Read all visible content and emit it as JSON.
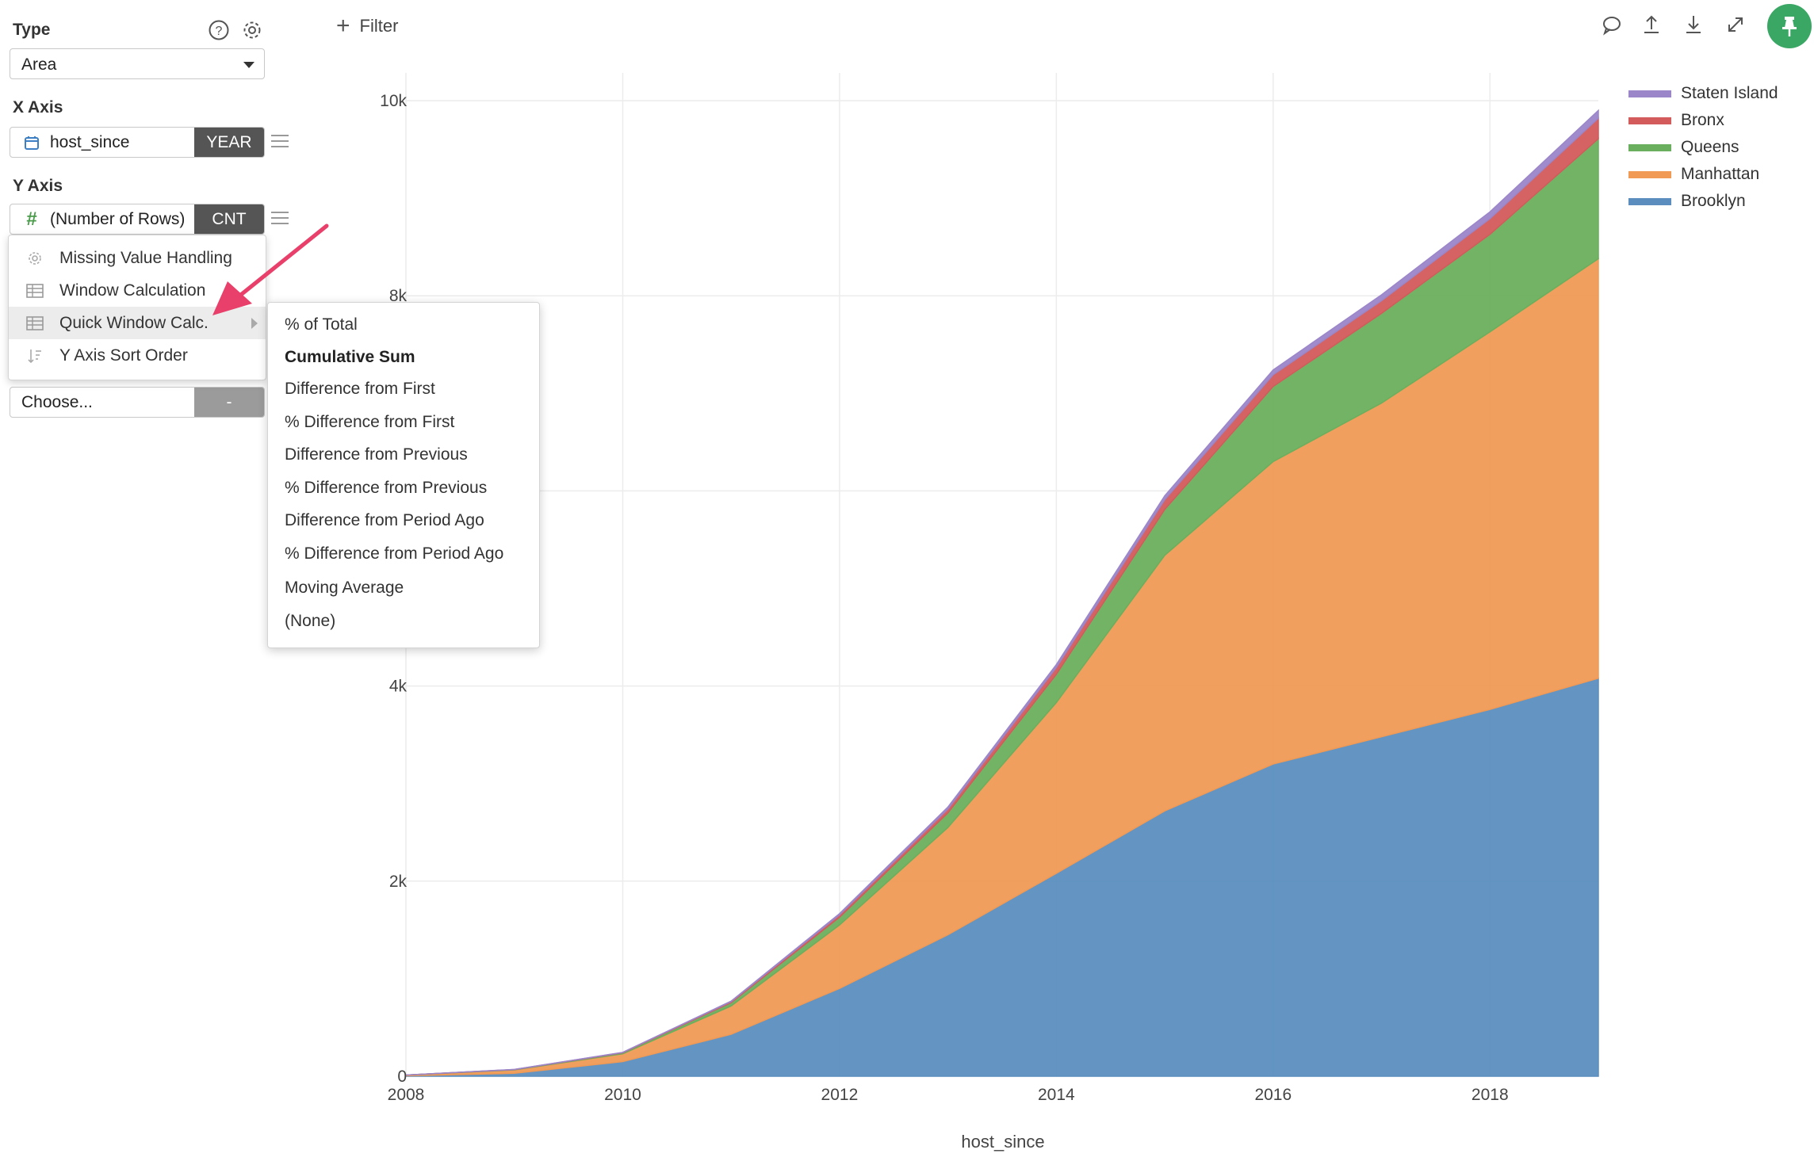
{
  "panel": {
    "type_label": "Type",
    "type_value": "Area",
    "x_axis_label": "X Axis",
    "x_axis_field": "host_since",
    "x_axis_agg": "YEAR",
    "y_axis_label": "Y Axis",
    "y_axis_field": "(Number of Rows)",
    "y_axis_agg": "CNT",
    "choose_placeholder": "Choose...",
    "choose_tag": "-"
  },
  "context_menu": {
    "items": [
      {
        "label": "Missing Value Handling",
        "icon": "gear-icon"
      },
      {
        "label": "Window Calculation",
        "icon": "table-icon"
      },
      {
        "label": "Quick Window Calc.",
        "icon": "table-icon"
      },
      {
        "label": "Y Axis Sort Order",
        "icon": "sort-icon"
      }
    ]
  },
  "submenu": {
    "items": [
      "% of Total",
      "Cumulative Sum",
      "Difference from First",
      "% Difference from First",
      "Difference from Previous",
      "% Difference from Previous",
      "Difference from Period Ago",
      "% Difference from Period Ago",
      "Moving Average",
      "(None)"
    ]
  },
  "toolbar": {
    "filter_label": "Filter",
    "icons": [
      "comment-icon",
      "upload-icon",
      "download-icon",
      "expand-icon",
      "pin-icon"
    ]
  },
  "colors": {
    "brooklyn": "#5b8ebf",
    "manhattan": "#f09a55",
    "queens": "#6aaf5d",
    "bronx": "#d35b5b",
    "staten_island": "#9b86c9",
    "accent_green": "#3aa765",
    "arrow": "#e8406a"
  },
  "chart_data": {
    "type": "area",
    "stacked": true,
    "xlabel": "host_since",
    "ylabel": "",
    "x": [
      2008,
      2009,
      2010,
      2011,
      2012,
      2013,
      2014,
      2015,
      2016,
      2017,
      2018,
      2019
    ],
    "x_ticks": [
      2008,
      2010,
      2012,
      2014,
      2016,
      2018
    ],
    "ylim": [
      0,
      10000
    ],
    "y_ticks": [
      0,
      2000,
      4000,
      6000,
      8000,
      10000
    ],
    "y_tick_labels": [
      "0",
      "2k",
      "4k",
      "6k",
      "8k",
      "10k"
    ],
    "series": [
      {
        "name": "Brooklyn",
        "color": "#5b8ebf",
        "values": [
          5,
          30,
          150,
          430,
          900,
          1450,
          2080,
          2720,
          3200,
          3480,
          3760,
          4080
        ]
      },
      {
        "name": "Manhattan",
        "color": "#f09a55",
        "values": [
          7,
          35,
          80,
          290,
          650,
          1100,
          1750,
          2620,
          3100,
          3420,
          3870,
          4300
        ]
      },
      {
        "name": "Queens",
        "color": "#6aaf5d",
        "values": [
          0,
          3,
          10,
          35,
          80,
          150,
          290,
          470,
          770,
          920,
          1000,
          1230
        ]
      },
      {
        "name": "Bronx",
        "color": "#d35b5b",
        "values": [
          0,
          1,
          3,
          10,
          25,
          40,
          70,
          100,
          120,
          130,
          160,
          210
        ]
      },
      {
        "name": "Staten Island",
        "color": "#9b86c9",
        "values": [
          0,
          1,
          2,
          5,
          12,
          20,
          30,
          40,
          50,
          60,
          70,
          80
        ]
      }
    ],
    "legend_order": [
      "Staten Island",
      "Bronx",
      "Queens",
      "Manhattan",
      "Brooklyn"
    ],
    "legend_position": "top-right",
    "grid": true
  }
}
